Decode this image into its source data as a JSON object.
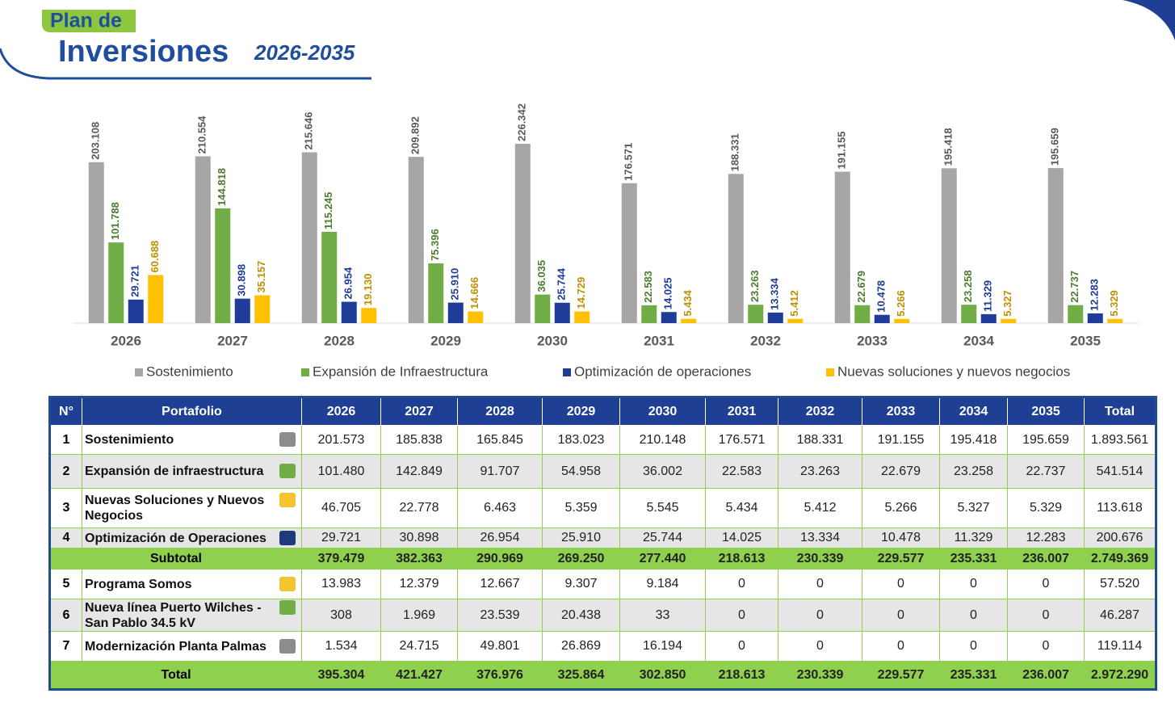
{
  "header": {
    "tag": "Plan de",
    "title": "Inversiones",
    "period": "2026-2035"
  },
  "chart_data": {
    "type": "bar",
    "categories": [
      "2026",
      "2027",
      "2028",
      "2029",
      "2030",
      "2031",
      "2032",
      "2033",
      "2034",
      "2035"
    ],
    "series": [
      {
        "name": "Sostenimiento",
        "color": "#a6a6a6",
        "label_color": "#595959",
        "values": [
          203108,
          210554,
          215646,
          209892,
          226342,
          176571,
          188331,
          191155,
          195418,
          195659
        ],
        "value_labels": [
          "203.108",
          "210.554",
          "215.646",
          "209.892",
          "226.342",
          "176.571",
          "188.331",
          "191.155",
          "195.418",
          "195.659"
        ]
      },
      {
        "name": "Expansión de Infraestructura",
        "color": "#70ad47",
        "label_color": "#4e7d2f",
        "values": [
          101788,
          144818,
          115245,
          75396,
          36035,
          22583,
          23263,
          22679,
          23258,
          22737
        ],
        "value_labels": [
          "101.788",
          "144.818",
          "115.245",
          "75.396",
          "36.035",
          "22.583",
          "23.263",
          "22.679",
          "23.258",
          "22.737"
        ]
      },
      {
        "name": "Optimización de operaciones",
        "color": "#1f3c99",
        "label_color": "#1f3c99",
        "values": [
          29721,
          30898,
          26954,
          25910,
          25744,
          14025,
          13334,
          10478,
          11329,
          12283
        ],
        "value_labels": [
          "29.721",
          "30.898",
          "26.954",
          "25.910",
          "25.744",
          "14.025",
          "13.334",
          "10.478",
          "11.329",
          "12.283"
        ]
      },
      {
        "name": "Nuevas soluciones y nuevos negocios",
        "color": "#ffc000",
        "label_color": "#bf9000",
        "values": [
          60688,
          35157,
          19130,
          14666,
          14729,
          5434,
          5412,
          5266,
          5327,
          5329
        ],
        "value_labels": [
          "60.688",
          "35.157",
          "19.130",
          "14.666",
          "14.729",
          "5.434",
          "5.412",
          "5.266",
          "5.327",
          "5.329"
        ]
      }
    ]
  },
  "table": {
    "header": [
      "N°",
      "Portafolio",
      "2026",
      "2027",
      "2028",
      "2029",
      "2030",
      "2031",
      "2032",
      "2033",
      "2034",
      "2035",
      "Total"
    ],
    "rows": [
      {
        "no": "1",
        "name": "Sostenimiento",
        "swatch": "#8c8c8c",
        "values": [
          "201.573",
          "185.838",
          "165.845",
          "183.023",
          "210.148",
          "176.571",
          "188.331",
          "191.155",
          "195.418",
          "195.659",
          "1.893.561"
        ]
      },
      {
        "no": "2",
        "name": "Expansión de infraestructura",
        "swatch": "#70ad47",
        "values": [
          "101.480",
          "142.849",
          "91.707",
          "54.958",
          "36.002",
          "22.583",
          "23.263",
          "22.679",
          "23.258",
          "22.737",
          "541.514"
        ]
      },
      {
        "no": "3",
        "name": "Nuevas Soluciones y Nuevos Negocios",
        "swatch": "#f4c430",
        "values": [
          "46.705",
          "22.778",
          "6.463",
          "5.359",
          "5.545",
          "5.434",
          "5.412",
          "5.266",
          "5.327",
          "5.329",
          "113.618"
        ]
      },
      {
        "no": "4",
        "name": "Optimización de Operaciones",
        "swatch": "#1f3a7a",
        "values": [
          "29.721",
          "30.898",
          "26.954",
          "25.910",
          "25.744",
          "14.025",
          "13.334",
          "10.478",
          "11.329",
          "12.283",
          "200.676"
        ]
      },
      {
        "label": "Subtotal",
        "values": [
          "379.479",
          "382.363",
          "290.969",
          "269.250",
          "277.440",
          "218.613",
          "230.339",
          "229.577",
          "235.331",
          "236.007",
          "2.749.369"
        ]
      },
      {
        "no": "5",
        "name": "Programa Somos",
        "swatch": "#f4c430",
        "values": [
          "13.983",
          "12.379",
          "12.667",
          "9.307",
          "9.184",
          "0",
          "0",
          "0",
          "0",
          "0",
          "57.520"
        ]
      },
      {
        "no": "6",
        "name": "Nueva línea Puerto Wilches - San Pablo 34.5 kV",
        "swatch": "#70ad47",
        "values": [
          "308",
          "1.969",
          "23.539",
          "20.438",
          "33",
          "0",
          "0",
          "0",
          "0",
          "0",
          "46.287"
        ]
      },
      {
        "no": "7",
        "name": "Modernización Planta Palmas",
        "swatch": "#8c8c8c",
        "values": [
          "1.534",
          "24.715",
          "49.801",
          "26.869",
          "16.194",
          "0",
          "0",
          "0",
          "0",
          "0",
          "119.114"
        ]
      },
      {
        "label": "Total",
        "values": [
          "395.304",
          "421.427",
          "376.976",
          "325.864",
          "302.850",
          "218.613",
          "230.339",
          "229.577",
          "235.331",
          "236.007",
          "2.972.290"
        ]
      }
    ]
  }
}
